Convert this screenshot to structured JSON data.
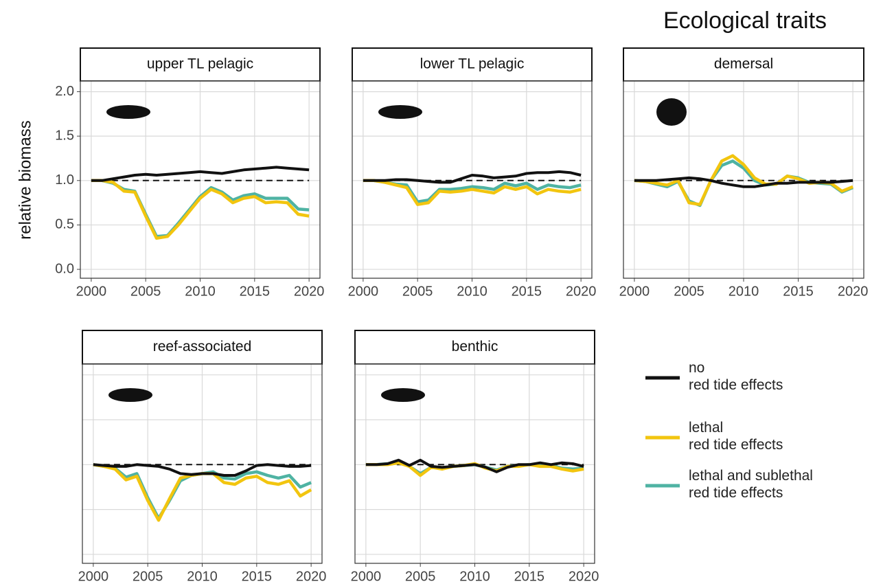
{
  "title": "Ecological traits",
  "y_label": "relative biomass",
  "chart_data": [
    {
      "type": "line",
      "title": "upper TL pelagic",
      "x": [
        2000,
        2001,
        2002,
        2003,
        2004,
        2005,
        2006,
        2007,
        2008,
        2009,
        2010,
        2011,
        2012,
        2013,
        2014,
        2015,
        2016,
        2017,
        2018,
        2019,
        2020
      ],
      "xlim": [
        1999,
        2021
      ],
      "xticks": [
        2000,
        2005,
        2010,
        2015,
        2020
      ],
      "ylim": [
        -0.1,
        2.12
      ],
      "yticks": [
        {
          "value": 0,
          "label": "0.0"
        },
        {
          "value": 0.5,
          "label": "0.5"
        },
        {
          "value": 1,
          "label": "1.0"
        },
        {
          "value": 1.5,
          "label": "1.5"
        },
        {
          "value": 2,
          "label": "2.0"
        }
      ],
      "hline": 1,
      "grid": true,
      "series": [
        {
          "name": "no\nred tide effects",
          "color": "#111111",
          "values": [
            1,
            1,
            1.02,
            1.04,
            1.06,
            1.07,
            1.06,
            1.07,
            1.08,
            1.09,
            1.1,
            1.09,
            1.08,
            1.1,
            1.12,
            1.13,
            1.14,
            1.15,
            1.14,
            1.13,
            1.12
          ]
        },
        {
          "name": "lethal\nred tide effects",
          "color": "#f2c50f",
          "values": [
            1,
            1,
            0.98,
            0.88,
            0.87,
            0.6,
            0.35,
            0.37,
            0.5,
            0.65,
            0.8,
            0.9,
            0.85,
            0.75,
            0.8,
            0.82,
            0.75,
            0.76,
            0.75,
            0.62,
            0.6
          ]
        },
        {
          "name": "lethal and sublethal\nred tide effects",
          "color": "#4fb3a3",
          "values": [
            1,
            1,
            0.97,
            0.9,
            0.88,
            0.62,
            0.37,
            0.38,
            0.52,
            0.67,
            0.82,
            0.92,
            0.87,
            0.78,
            0.83,
            0.85,
            0.8,
            0.8,
            0.8,
            0.68,
            0.67
          ]
        }
      ]
    },
    {
      "type": "line",
      "title": "lower TL pelagic",
      "x": [
        2000,
        2001,
        2002,
        2003,
        2004,
        2005,
        2006,
        2007,
        2008,
        2009,
        2010,
        2011,
        2012,
        2013,
        2014,
        2015,
        2016,
        2017,
        2018,
        2019,
        2020
      ],
      "xlim": [
        1999,
        2021
      ],
      "xticks": [
        2000,
        2005,
        2010,
        2015,
        2020
      ],
      "ylim": [
        -0.1,
        2.12
      ],
      "yticks": [
        0,
        0.5,
        1,
        1.5,
        2
      ],
      "hline": 1,
      "grid": true,
      "series": [
        {
          "name": "no\nred tide effects",
          "color": "#111111",
          "values": [
            1,
            1,
            1,
            1.01,
            1.01,
            1,
            0.99,
            0.98,
            0.98,
            1.02,
            1.06,
            1.05,
            1.03,
            1.04,
            1.05,
            1.08,
            1.09,
            1.09,
            1.1,
            1.09,
            1.06
          ]
        },
        {
          "name": "lethal\nred tide effects",
          "color": "#f2c50f",
          "values": [
            1,
            1,
            0.98,
            0.95,
            0.92,
            0.73,
            0.75,
            0.88,
            0.87,
            0.88,
            0.9,
            0.88,
            0.86,
            0.93,
            0.9,
            0.93,
            0.85,
            0.9,
            0.88,
            0.87,
            0.9
          ]
        },
        {
          "name": "lethal and sublethal\nred tide effects",
          "color": "#4fb3a3",
          "values": [
            1,
            1,
            0.98,
            0.96,
            0.95,
            0.76,
            0.78,
            0.9,
            0.9,
            0.91,
            0.93,
            0.92,
            0.9,
            0.97,
            0.94,
            0.97,
            0.9,
            0.95,
            0.93,
            0.92,
            0.95
          ]
        }
      ]
    },
    {
      "type": "line",
      "title": "demersal",
      "x": [
        2000,
        2001,
        2002,
        2003,
        2004,
        2005,
        2006,
        2007,
        2008,
        2009,
        2010,
        2011,
        2012,
        2013,
        2014,
        2015,
        2016,
        2017,
        2018,
        2019,
        2020
      ],
      "xlim": [
        1999,
        2021
      ],
      "xticks": [
        2000,
        2005,
        2010,
        2015,
        2020
      ],
      "ylim": [
        -0.1,
        2.12
      ],
      "yticks": [
        0,
        0.5,
        1,
        1.5,
        2
      ],
      "hline": 1,
      "grid": true,
      "series": [
        {
          "name": "no\nred tide effects",
          "color": "#111111",
          "values": [
            1,
            1,
            1,
            1.01,
            1.02,
            1.03,
            1.02,
            1,
            0.97,
            0.95,
            0.93,
            0.93,
            0.95,
            0.97,
            0.97,
            0.98,
            0.98,
            0.98,
            0.98,
            0.99,
            1
          ]
        },
        {
          "name": "lethal\nred tide effects",
          "color": "#f2c50f",
          "values": [
            1,
            0.99,
            0.97,
            0.95,
            1,
            0.75,
            0.73,
            1,
            1.22,
            1.28,
            1.18,
            1.03,
            0.96,
            0.96,
            1.05,
            1.02,
            0.97,
            0.98,
            0.97,
            0.88,
            0.93
          ]
        },
        {
          "name": "lethal and sublethal\nred tide effects",
          "color": "#4fb3a3",
          "values": [
            1,
            0.99,
            0.96,
            0.93,
            0.99,
            0.77,
            0.72,
            1,
            1.17,
            1.22,
            1.14,
            1,
            0.95,
            0.96,
            1.05,
            1.03,
            0.98,
            0.97,
            0.96,
            0.87,
            0.92
          ]
        }
      ]
    },
    {
      "type": "line",
      "title": "reef-associated",
      "x": [
        2000,
        2001,
        2002,
        2003,
        2004,
        2005,
        2006,
        2007,
        2008,
        2009,
        2010,
        2011,
        2012,
        2013,
        2014,
        2015,
        2016,
        2017,
        2018,
        2019,
        2020
      ],
      "xlim": [
        1999,
        2021
      ],
      "xticks": [
        2000,
        2005,
        2010,
        2015,
        2020
      ],
      "ylim": [
        -0.1,
        2.12
      ],
      "yticks": [
        0,
        0.5,
        1,
        1.5,
        2
      ],
      "hline": 1,
      "grid": true,
      "series": [
        {
          "name": "no\nred tide effects",
          "color": "#111111",
          "values": [
            1,
            0.99,
            0.98,
            0.98,
            1,
            0.99,
            0.98,
            0.95,
            0.9,
            0.89,
            0.9,
            0.9,
            0.88,
            0.88,
            0.93,
            0.99,
            1,
            0.99,
            0.98,
            0.98,
            0.99
          ]
        },
        {
          "name": "lethal\nred tide effects",
          "color": "#f2c50f",
          "values": [
            1,
            0.98,
            0.95,
            0.83,
            0.87,
            0.6,
            0.38,
            0.62,
            0.85,
            0.88,
            0.9,
            0.9,
            0.8,
            0.78,
            0.85,
            0.87,
            0.8,
            0.78,
            0.82,
            0.65,
            0.72
          ]
        },
        {
          "name": "lethal and sublethal\nred tide effects",
          "color": "#4fb3a3",
          "values": [
            1,
            0.98,
            0.96,
            0.86,
            0.9,
            0.63,
            0.4,
            0.6,
            0.82,
            0.88,
            0.9,
            0.92,
            0.85,
            0.84,
            0.9,
            0.92,
            0.88,
            0.85,
            0.88,
            0.75,
            0.8
          ]
        }
      ]
    },
    {
      "type": "line",
      "title": "benthic",
      "x": [
        2000,
        2001,
        2002,
        2003,
        2004,
        2005,
        2006,
        2007,
        2008,
        2009,
        2010,
        2011,
        2012,
        2013,
        2014,
        2015,
        2016,
        2017,
        2018,
        2019,
        2020
      ],
      "xlim": [
        1999,
        2021
      ],
      "xticks": [
        2000,
        2005,
        2010,
        2015,
        2020
      ],
      "ylim": [
        -0.1,
        2.12
      ],
      "yticks": [
        0,
        0.5,
        1,
        1.5,
        2
      ],
      "hline": 1,
      "grid": true,
      "series": [
        {
          "name": "no\nred tide effects",
          "color": "#111111",
          "values": [
            1,
            1,
            1.01,
            1.05,
            0.99,
            1.05,
            0.98,
            0.97,
            0.98,
            0.99,
            1,
            0.97,
            0.92,
            0.97,
            1,
            1,
            1.02,
            1,
            1.02,
            1.01,
            0.98
          ]
        },
        {
          "name": "lethal\nred tide effects",
          "color": "#f2c50f",
          "values": [
            1,
            1,
            1,
            1.02,
            0.98,
            0.88,
            0.97,
            0.95,
            0.98,
            0.99,
            1.01,
            0.96,
            0.93,
            0.98,
            0.98,
            1,
            0.98,
            0.98,
            0.95,
            0.93,
            0.95
          ]
        },
        {
          "name": "lethal and sublethal\nred tide effects",
          "color": "#4fb3a3",
          "values": [
            1,
            1,
            1.01,
            1.03,
            0.98,
            0.9,
            0.97,
            0.96,
            0.98,
            0.99,
            1,
            0.97,
            0.94,
            0.98,
            0.99,
            1,
            0.99,
            0.99,
            0.96,
            0.95,
            0.96
          ]
        }
      ]
    }
  ]
}
